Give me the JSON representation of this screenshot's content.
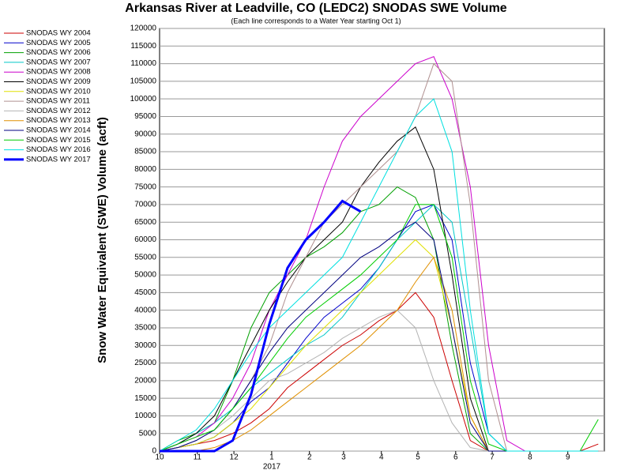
{
  "chart_data": {
    "type": "line",
    "title": "Arkansas River at Leadville, CO (LEDC2) SNODAS SWE Volume",
    "subtitle": "(Each line corresponds to a Water Year starting Oct 1)",
    "y_label": "Snow Water Equivalent (SWE) Volume (acft)",
    "x_annotation": "2017",
    "x": [
      0,
      15,
      30,
      45,
      60,
      75,
      90,
      105,
      120,
      135,
      150,
      165,
      180,
      195,
      210,
      225,
      240,
      255,
      270,
      285,
      300,
      315,
      330,
      345,
      360
    ],
    "xlim": [
      0,
      365
    ],
    "xticks": [
      {
        "value": 0,
        "label": "10"
      },
      {
        "value": 31,
        "label": "11"
      },
      {
        "value": 61,
        "label": "12"
      },
      {
        "value": 92,
        "label": "1"
      },
      {
        "value": 123,
        "label": "2"
      },
      {
        "value": 151,
        "label": "3"
      },
      {
        "value": 182,
        "label": "4"
      },
      {
        "value": 212,
        "label": "5"
      },
      {
        "value": 243,
        "label": "6"
      },
      {
        "value": 273,
        "label": "7"
      },
      {
        "value": 304,
        "label": "8"
      },
      {
        "value": 335,
        "label": "9"
      }
    ],
    "ylim": [
      0,
      120000
    ],
    "yticks": [
      0,
      5000,
      10000,
      15000,
      20000,
      25000,
      30000,
      35000,
      40000,
      45000,
      50000,
      55000,
      60000,
      65000,
      70000,
      75000,
      80000,
      85000,
      90000,
      95000,
      100000,
      105000,
      110000,
      115000,
      120000
    ],
    "grid": true,
    "series": [
      {
        "name": "SNODAS WY 2004",
        "color": "#cc0000",
        "values": [
          0,
          1000,
          2000,
          3000,
          5000,
          8000,
          12000,
          18000,
          22000,
          26000,
          30000,
          33000,
          37000,
          40000,
          45000,
          38000,
          20000,
          3000,
          0,
          0,
          0,
          0,
          0,
          0,
          2000
        ]
      },
      {
        "name": "SNODAS WY 2005",
        "color": "#0000cc",
        "values": [
          0,
          1000,
          2000,
          4000,
          8000,
          14000,
          18000,
          25000,
          32000,
          38000,
          42000,
          46000,
          52000,
          60000,
          68000,
          70000,
          60000,
          25000,
          5000,
          0,
          0,
          0,
          0,
          0,
          0
        ]
      },
      {
        "name": "SNODAS WY 2006",
        "color": "#00a000",
        "values": [
          0,
          3000,
          5000,
          8000,
          20000,
          35000,
          45000,
          50000,
          55000,
          58000,
          62000,
          68000,
          70000,
          75000,
          72000,
          60000,
          30000,
          5000,
          0,
          0,
          0,
          0,
          0,
          0,
          0
        ]
      },
      {
        "name": "SNODAS WY 2007",
        "color": "#00c8c8",
        "values": [
          0,
          2000,
          5000,
          8000,
          12000,
          18000,
          22000,
          26000,
          30000,
          33000,
          38000,
          45000,
          52000,
          60000,
          65000,
          70000,
          65000,
          35000,
          5000,
          0,
          0,
          0,
          0,
          0,
          0
        ]
      },
      {
        "name": "SNODAS WY 2008",
        "color": "#cc00cc",
        "values": [
          0,
          2000,
          4000,
          8000,
          15000,
          25000,
          40000,
          50000,
          60000,
          75000,
          88000,
          95000,
          100000,
          105000,
          110000,
          112000,
          100000,
          75000,
          30000,
          3000,
          0,
          0,
          0,
          0,
          0
        ]
      },
      {
        "name": "SNODAS WY 2009",
        "color": "#000000",
        "values": [
          0,
          2000,
          5000,
          10000,
          20000,
          30000,
          40000,
          48000,
          55000,
          60000,
          65000,
          75000,
          82000,
          88000,
          92000,
          80000,
          50000,
          15000,
          0,
          0,
          0,
          0,
          0,
          0,
          0
        ]
      },
      {
        "name": "SNODAS WY 2010",
        "color": "#e0e000",
        "values": [
          0,
          1000,
          2000,
          4000,
          8000,
          12000,
          18000,
          24000,
          30000,
          35000,
          40000,
          45000,
          50000,
          55000,
          60000,
          55000,
          35000,
          10000,
          0,
          0,
          0,
          0,
          0,
          0,
          0
        ]
      },
      {
        "name": "SNODAS WY 2011",
        "color": "#b09090",
        "values": [
          0,
          1000,
          3000,
          6000,
          12000,
          20000,
          30000,
          45000,
          55000,
          65000,
          70000,
          75000,
          80000,
          85000,
          95000,
          110000,
          105000,
          70000,
          20000,
          0,
          0,
          0,
          0,
          0,
          0
        ]
      },
      {
        "name": "SNODAS WY 2012",
        "color": "#b4b4b4",
        "values": [
          0,
          1000,
          3000,
          6000,
          10000,
          15000,
          20000,
          22000,
          25000,
          28000,
          32000,
          35000,
          38000,
          40000,
          35000,
          20000,
          8000,
          1000,
          0,
          0,
          0,
          0,
          0,
          0,
          0
        ]
      },
      {
        "name": "SNODAS WY 2013",
        "color": "#e09000",
        "values": [
          0,
          0,
          0,
          1000,
          3000,
          6000,
          10000,
          14000,
          18000,
          22000,
          26000,
          30000,
          35000,
          40000,
          48000,
          55000,
          40000,
          10000,
          0,
          0,
          0,
          0,
          0,
          0,
          0
        ]
      },
      {
        "name": "SNODAS WY 2014",
        "color": "#000080",
        "values": [
          0,
          1000,
          3000,
          6000,
          12000,
          20000,
          28000,
          35000,
          40000,
          45000,
          50000,
          55000,
          58000,
          62000,
          65000,
          60000,
          35000,
          8000,
          0,
          0,
          0,
          0,
          0,
          0,
          0
        ]
      },
      {
        "name": "SNODAS WY 2015",
        "color": "#00cc00",
        "values": [
          0,
          2000,
          4000,
          6000,
          12000,
          18000,
          25000,
          32000,
          38000,
          42000,
          46000,
          50000,
          55000,
          60000,
          70000,
          70000,
          55000,
          20000,
          2000,
          0,
          0,
          0,
          0,
          0,
          9000
        ]
      },
      {
        "name": "SNODAS WY 2016",
        "color": "#00e0e0",
        "values": [
          0,
          3000,
          6000,
          12000,
          20000,
          28000,
          35000,
          40000,
          45000,
          50000,
          55000,
          65000,
          75000,
          85000,
          95000,
          100000,
          85000,
          40000,
          5000,
          0,
          0,
          0,
          0,
          0,
          0
        ]
      },
      {
        "name": "SNODAS WY 2017",
        "color": "#0000ff",
        "width": 3,
        "values": [
          0,
          0,
          0,
          0,
          3000,
          16000,
          36000,
          52000,
          60000,
          65000,
          71000,
          68000,
          null,
          null,
          null,
          null,
          null,
          null,
          null,
          null,
          null,
          null,
          null,
          null,
          null
        ]
      }
    ]
  }
}
